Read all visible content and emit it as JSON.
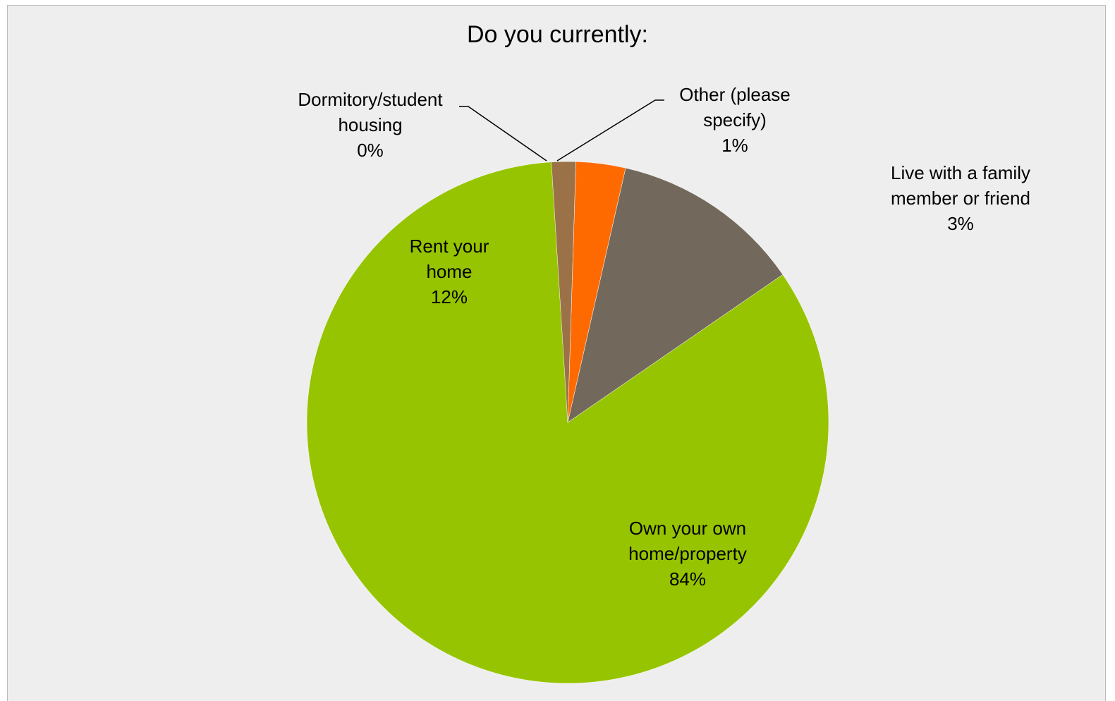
{
  "chart_data": {
    "type": "pie",
    "title": "Do you currently:",
    "slices": [
      {
        "label_lines": [
          "Own your own",
          "home/property"
        ],
        "value": 84,
        "pct_label": "84%",
        "color": "#97c400"
      },
      {
        "label_lines": [
          "Rent your",
          "home"
        ],
        "value": 12,
        "pct_label": "12%",
        "color": "#72685b"
      },
      {
        "label_lines": [
          "Live with a family",
          "member or friend"
        ],
        "value": 3,
        "pct_label": "3%",
        "color": "#ff6a00"
      },
      {
        "label_lines": [
          "Dormitory/student",
          "housing"
        ],
        "value": 0,
        "pct_label": "0%",
        "color": "#a05a2c"
      },
      {
        "label_lines": [
          "Other (please",
          "specify)"
        ],
        "value": 1,
        "pct_label": "1%",
        "color": "#9b7247"
      }
    ],
    "start_angle": "12 o'clock",
    "direction": "counter-clockwise",
    "legend": "none"
  },
  "colors": {
    "background": "#eeeeee",
    "border": "#bcbcbc",
    "leader_line": "#000000"
  }
}
